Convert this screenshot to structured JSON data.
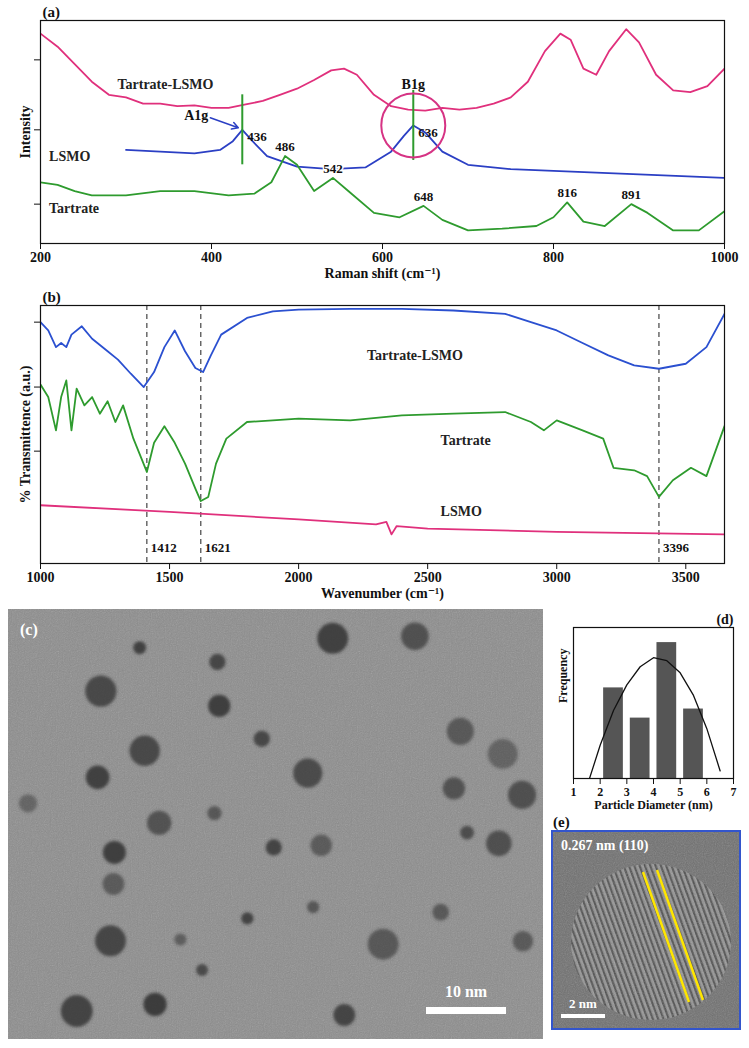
{
  "chart_data": [
    {
      "panel": "(a)",
      "type": "line",
      "x_label": "Raman shift (cm⁻¹)",
      "y_label": "Intensity",
      "xlim": [
        200,
        1000
      ],
      "xticks": [
        200,
        400,
        600,
        800,
        1000
      ],
      "ylim": [
        0,
        255
      ],
      "yticks": [
        45,
        130,
        210
      ],
      "tick_labels": "x",
      "series": [
        {
          "name": "Tartrate-LSMO",
          "color": "#e0307c",
          "x": [
            200,
            220,
            240,
            260,
            280,
            300,
            320,
            340,
            360,
            380,
            400,
            420,
            440,
            460,
            480,
            500,
            520,
            540,
            555,
            570,
            590,
            610,
            630,
            650,
            670,
            690,
            710,
            730,
            750,
            770,
            790,
            808,
            820,
            835,
            850,
            865,
            885,
            900,
            920,
            940,
            960,
            980,
            1000
          ],
          "values": [
            240,
            225,
            205,
            185,
            170,
            167,
            160,
            160,
            157,
            158,
            155,
            155,
            159,
            163,
            170,
            177,
            187,
            198,
            200,
            193,
            170,
            157,
            153,
            152,
            155,
            153,
            155,
            160,
            167,
            185,
            220,
            240,
            233,
            200,
            193,
            220,
            245,
            230,
            193,
            175,
            173,
            180,
            200
          ]
        },
        {
          "name": "LSMO",
          "color": "#2b3fc4",
          "x": [
            300,
            340,
            380,
            410,
            425,
            436,
            448,
            465,
            500,
            540,
            580,
            610,
            625,
            636,
            650,
            670,
            700,
            750,
            800,
            850,
            900,
            950,
            1000
          ],
          "values": [
            107,
            105,
            103,
            107,
            117,
            130,
            117,
            100,
            88,
            85,
            87,
            105,
            123,
            135,
            127,
            105,
            90,
            85,
            83,
            81,
            79,
            77,
            75
          ],
          "peak_labels": [
            436,
            636
          ],
          "mode_labels": [
            "A1g",
            "B1g"
          ]
        },
        {
          "name": "Tartrate",
          "color": "#2e9b2e",
          "x": [
            200,
            220,
            240,
            260,
            300,
            340,
            380,
            420,
            450,
            470,
            486,
            500,
            520,
            542,
            560,
            590,
            620,
            648,
            670,
            700,
            740,
            780,
            800,
            816,
            835,
            860,
            891,
            910,
            940,
            970,
            1000
          ],
          "values": [
            70,
            67,
            60,
            55,
            55,
            60,
            60,
            55,
            57,
            70,
            100,
            90,
            60,
            75,
            60,
            35,
            30,
            43,
            27,
            15,
            17,
            20,
            30,
            47,
            25,
            20,
            45,
            35,
            15,
            15,
            37
          ],
          "peak_labels": [
            486,
            542,
            648,
            816,
            891
          ]
        }
      ]
    },
    {
      "panel": "(b)",
      "type": "line",
      "x_label": "Wavenumber (cm⁻¹)",
      "y_label": "% Transmittence (a.u.)",
      "xlim": [
        1000,
        3650
      ],
      "xticks": [
        1000,
        1500,
        2000,
        2500,
        3000,
        3500
      ],
      "ylim": [
        0,
        310
      ],
      "yticks": [
        135,
        212,
        290
      ],
      "tick_labels": "x",
      "markers": [
        1412,
        1621,
        3396
      ],
      "series": [
        {
          "name": "Tartrate-LSMO",
          "color": "#2b50d0",
          "x": [
            1000,
            1030,
            1060,
            1080,
            1100,
            1120,
            1160,
            1200,
            1260,
            1300,
            1350,
            1400,
            1440,
            1480,
            1520,
            1560,
            1600,
            1630,
            1660,
            1700,
            1800,
            1900,
            2000,
            2200,
            2400,
            2600,
            2800,
            2900,
            3000,
            3100,
            3200,
            3300,
            3396,
            3500,
            3580,
            3650
          ],
          "values": [
            290,
            280,
            260,
            265,
            260,
            275,
            285,
            270,
            255,
            245,
            228,
            212,
            230,
            260,
            280,
            255,
            235,
            230,
            250,
            275,
            295,
            303,
            305,
            306,
            306,
            304,
            300,
            290,
            280,
            265,
            250,
            238,
            234,
            240,
            260,
            300
          ]
        },
        {
          "name": "Tartrate",
          "color": "#2e9b2e",
          "x": [
            1000,
            1030,
            1060,
            1080,
            1100,
            1120,
            1140,
            1170,
            1200,
            1230,
            1260,
            1290,
            1320,
            1360,
            1412,
            1440,
            1480,
            1520,
            1560,
            1600,
            1621,
            1650,
            1680,
            1720,
            1800,
            1900,
            2000,
            2200,
            2400,
            2600,
            2800,
            2900,
            2950,
            3000,
            3100,
            3180,
            3220,
            3300,
            3350,
            3396,
            3450,
            3520,
            3580,
            3650
          ],
          "values": [
            215,
            200,
            160,
            200,
            220,
            160,
            210,
            190,
            200,
            180,
            195,
            170,
            190,
            150,
            110,
            145,
            165,
            145,
            120,
            90,
            75,
            80,
            120,
            150,
            170,
            172,
            174,
            172,
            178,
            180,
            182,
            170,
            160,
            172,
            160,
            150,
            115,
            112,
            105,
            80,
            100,
            115,
            105,
            165
          ]
        },
        {
          "name": "LSMO",
          "color": "#e0307c",
          "x": [
            1000,
            1500,
            2000,
            2300,
            2340,
            2360,
            2380,
            2500,
            3000,
            3650
          ],
          "values": [
            70,
            62,
            53,
            47,
            50,
            35,
            45,
            42,
            38,
            35
          ]
        }
      ]
    },
    {
      "panel": "(d)",
      "type": "bar",
      "x_label": "Particle Diameter (nm)",
      "y_label": "Frequency",
      "x": [
        2.5,
        3.5,
        4.5,
        5.5
      ],
      "values": [
        0.6,
        0.4,
        0.9,
        0.46
      ],
      "color": "#555555",
      "xlim": [
        1,
        7
      ],
      "xticks": [
        1,
        2,
        3,
        4,
        5,
        6,
        7
      ],
      "ylim": [
        0,
        1
      ],
      "tick_labels": "x",
      "fit": {
        "x": [
          1.6,
          2,
          2.5,
          3,
          3.5,
          4,
          4.5,
          5,
          5.5,
          6,
          6.5
        ],
        "values": [
          0,
          0.22,
          0.45,
          0.62,
          0.74,
          0.8,
          0.78,
          0.7,
          0.55,
          0.33,
          0.05
        ]
      }
    }
  ],
  "images": [
    {
      "panel": "(c)",
      "scale_bar": "10 nm"
    },
    {
      "panel": "(e)",
      "annotation": "0.267 nm (110)",
      "scale_bar": "2 nm"
    }
  ]
}
